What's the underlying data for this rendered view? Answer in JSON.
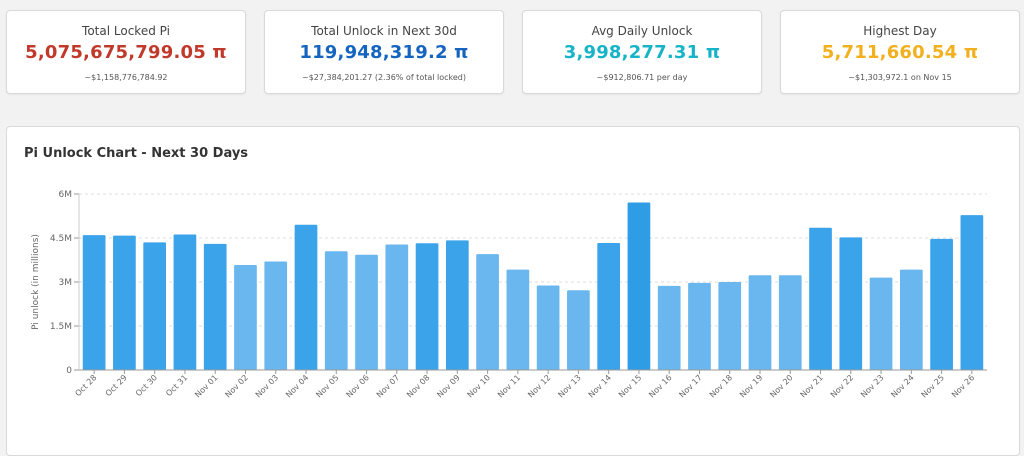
{
  "colors": {
    "locked": "#c0392b",
    "unlock_total": "#1565c0",
    "avg": "#17b4c8",
    "highest": "#f2b01e",
    "bar_light": "#6ab7ef",
    "bar_dark": "#3ba3ea"
  },
  "cards": [
    {
      "label": "Total Locked Pi",
      "value": "5,075,675,799.05 π",
      "sub": "~$1,158,776,784.92"
    },
    {
      "label": "Total Unlock in Next 30d",
      "value": "119,948,319.2 π",
      "sub": "~$27,384,201.27 (2.36% of total locked)"
    },
    {
      "label": "Avg Daily Unlock",
      "value": "3,998,277.31 π",
      "sub": "~$912,806.71 per day"
    },
    {
      "label": "Highest Day",
      "value": "5,711,660.54 π",
      "sub": "~$1,303,972.1 on Nov 15"
    }
  ],
  "chart_title": "Pi Unlock Chart - Next 30 Days",
  "chart_data": {
    "type": "bar",
    "title": "Pi Unlock Chart - Next 30 Days",
    "xlabel": "",
    "ylabel": "Pi unlock (in millions)",
    "ylim": [
      0,
      6
    ],
    "yticks": [
      0,
      1.5,
      3,
      4.5,
      6
    ],
    "ytick_labels": [
      "0",
      "1.5M",
      "3M",
      "4.5M",
      "6M"
    ],
    "grid": true,
    "categories": [
      "Oct 28",
      "Oct 29",
      "Oct 30",
      "Oct 31",
      "Nov 01",
      "Nov 02",
      "Nov 03",
      "Nov 04",
      "Nov 05",
      "Nov 06",
      "Nov 07",
      "Nov 08",
      "Nov 09",
      "Nov 10",
      "Nov 11",
      "Nov 12",
      "Nov 13",
      "Nov 14",
      "Nov 15",
      "Nov 16",
      "Nov 17",
      "Nov 18",
      "Nov 19",
      "Nov 20",
      "Nov 21",
      "Nov 22",
      "Nov 23",
      "Nov 24",
      "Nov 25",
      "Nov 26"
    ],
    "values": [
      4.6,
      4.58,
      4.35,
      4.62,
      4.3,
      3.58,
      3.7,
      4.95,
      4.05,
      3.93,
      4.28,
      4.32,
      4.42,
      3.95,
      3.42,
      2.88,
      2.72,
      4.33,
      5.71,
      2.87,
      2.97,
      3.0,
      3.23,
      3.23,
      4.85,
      4.52,
      3.15,
      3.42,
      4.47,
      5.28
    ]
  }
}
